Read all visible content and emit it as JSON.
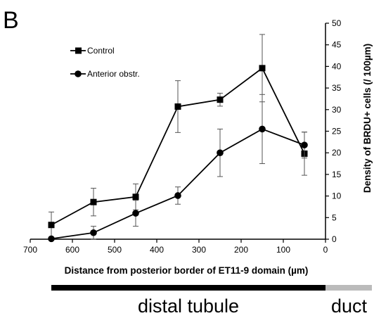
{
  "panel_label": "B",
  "chart_data": {
    "type": "line",
    "xlabel": "Distance from posterior border of ET11-9 domain (µm)",
    "ylabel": "Density of BRDU+ cells (/ 100µm)",
    "xlim": [
      700,
      0
    ],
    "ylim": [
      0,
      50
    ],
    "x_ticks": [
      700,
      600,
      500,
      400,
      300,
      200,
      100,
      0
    ],
    "y_ticks": [
      0,
      5,
      10,
      15,
      20,
      25,
      30,
      35,
      40,
      45,
      50
    ],
    "x_reversed": true,
    "y_axis_side": "right",
    "grid": false,
    "legend_position": "top-left",
    "x": [
      650,
      550,
      450,
      350,
      250,
      150,
      50
    ],
    "series": [
      {
        "name": "Control",
        "marker": "square",
        "values": [
          3.3,
          8.6,
          9.8,
          30.7,
          32.3,
          39.6,
          19.8
        ],
        "error": [
          3.0,
          3.2,
          3.0,
          6.0,
          1.5,
          7.8,
          5.0
        ]
      },
      {
        "name": "Anterior obstr.",
        "marker": "circle",
        "values": [
          0.1,
          1.5,
          6.0,
          10.1,
          20.0,
          25.5,
          21.8
        ],
        "error": [
          0.3,
          1.5,
          3.0,
          2.0,
          5.5,
          8.0,
          3.0
        ]
      }
    ],
    "regions": [
      {
        "label": "distal tubule",
        "from": 650,
        "to": 0,
        "color": "#000000"
      },
      {
        "label": "duct",
        "from": 0,
        "to": -110,
        "color": "#bbbbbb"
      }
    ]
  }
}
